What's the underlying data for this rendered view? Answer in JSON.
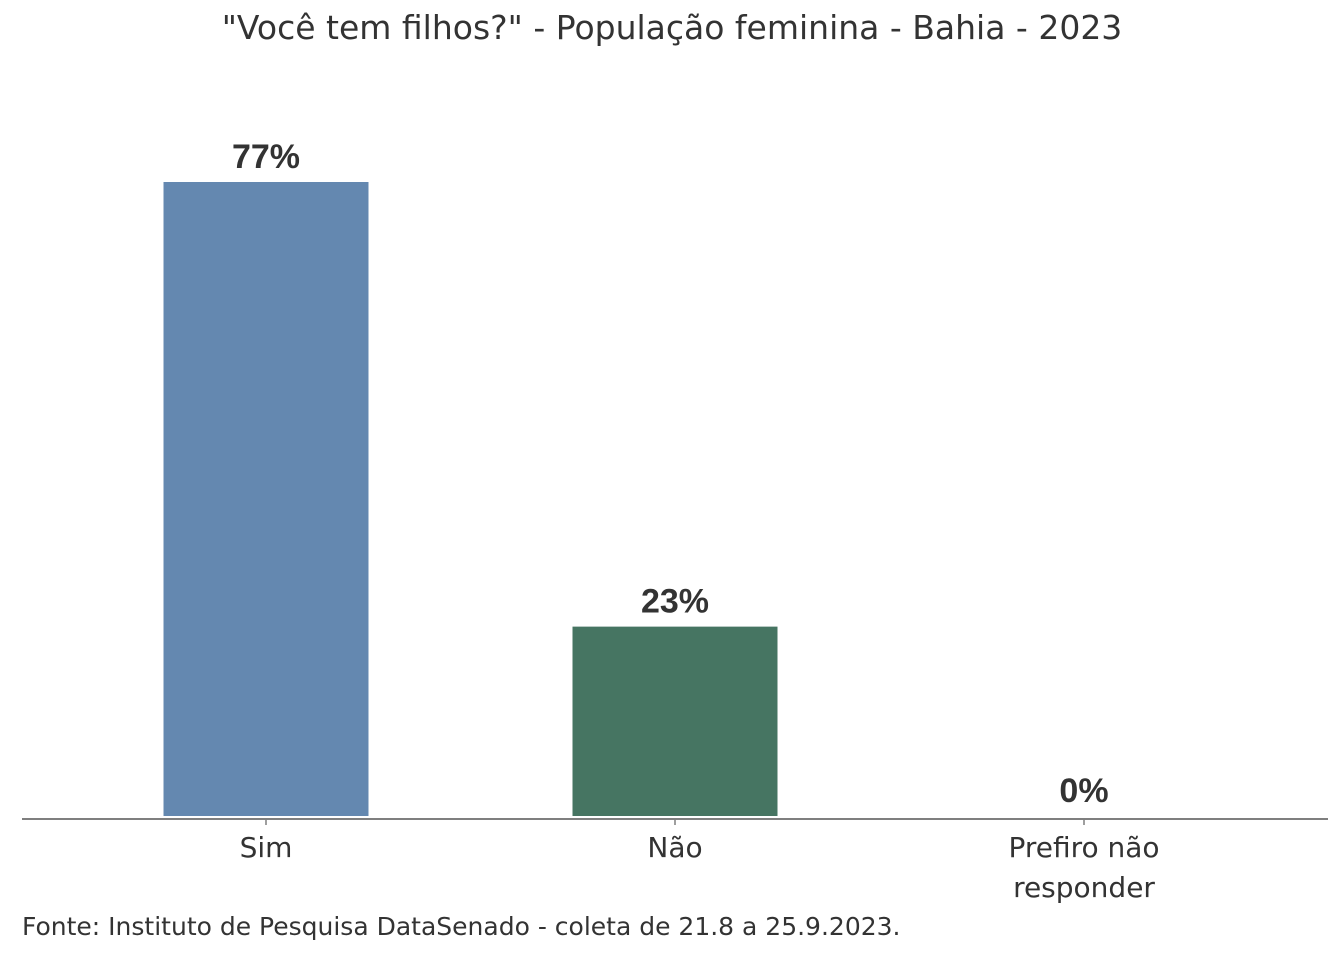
{
  "chart_data": {
    "type": "bar",
    "title": "\"Você tem filhos?\" - População feminina - Bahia - 2023",
    "categories": [
      [
        "Sim"
      ],
      [
        "Não"
      ],
      [
        "Prefiro não",
        "responder"
      ]
    ],
    "values": [
      77,
      23,
      0
    ],
    "value_labels": [
      "77%",
      "23%",
      "0%"
    ],
    "colors": [
      "#6488B0",
      "#467562",
      "#6488B0"
    ],
    "xlabel": "",
    "ylabel": "",
    "ylim": [
      0,
      77
    ],
    "grid": false,
    "legend": "none"
  },
  "source": "Fonte: Instituto de Pesquisa DataSenado - coleta de 21.8 a 25.9.2023."
}
